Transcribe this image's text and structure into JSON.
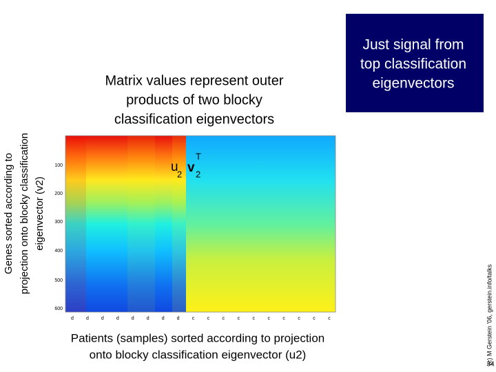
{
  "title": {
    "lines": [
      "Matrix values represent outer",
      "products of two blocky",
      "classification eigenvectors"
    ]
  },
  "callout": {
    "lines": [
      "Just signal from",
      "top classification",
      "eigenvectors"
    ]
  },
  "y_label": {
    "lines": [
      "Genes sorted according to",
      "projection onto blocky classification",
      "eigenvector (v2)"
    ]
  },
  "x_label": {
    "lines": [
      "Patients (samples) sorted according to projection",
      "onto blocky classification eigenvector (u2)"
    ]
  },
  "formula": {
    "u": "u",
    "u_sub": "2",
    "v": "v",
    "v_sub": "2",
    "v_sup": "T"
  },
  "heatmap": {
    "y_ticks": [
      100,
      200,
      300,
      400,
      500,
      600
    ],
    "x_ticks": [
      "d",
      "d",
      "d",
      "d",
      "d",
      "d",
      "d",
      "d",
      "c",
      "c",
      "c",
      "c",
      "c",
      "c",
      "c",
      "c",
      "c",
      "c"
    ]
  },
  "footer": {
    "copyright": "(c) M Gerstein '06, gerstein.info/talks",
    "page": "34"
  }
}
